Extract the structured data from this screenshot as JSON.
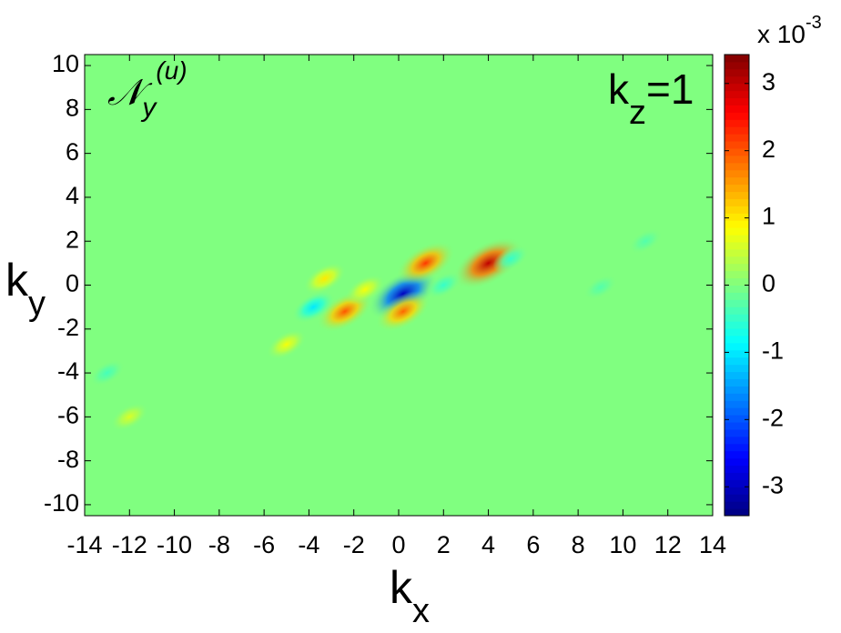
{
  "chart_data": {
    "type": "contour",
    "title": {
      "base": "𝒩",
      "sub": "y",
      "sup": "(u)"
    },
    "annotation": {
      "base": "k",
      "sub": "z",
      "rest": "=1"
    },
    "xlabel": {
      "base": "k",
      "sub": "x"
    },
    "ylabel": {
      "base": "k",
      "sub": "y"
    },
    "colorbar_label": {
      "base": "x 10",
      "sup": "-3"
    },
    "x": [
      0.2,
      4,
      1.2,
      -2.4,
      0.2,
      -3.8,
      -3.3,
      -5,
      -1.5,
      2,
      5,
      11,
      -13,
      -12,
      9
    ],
    "y": [
      -0.4,
      1,
      1,
      -1.2,
      -1.2,
      -1,
      0.3,
      -2.7,
      -0.2,
      0,
      1.2,
      2,
      -4,
      -6,
      -0.1
    ],
    "z": [
      -3.0,
      3.0,
      2.2,
      2.0,
      1.9,
      -1.0,
      1.0,
      0.8,
      0.8,
      -0.5,
      -0.5,
      -0.3,
      -0.4,
      0.6,
      -0.3
    ],
    "colormap": "jet",
    "xlim": [
      -14,
      14
    ],
    "ylim": [
      -10.5,
      10.5
    ],
    "clim": [
      -3.43,
      3.43
    ],
    "xticks": [
      -14,
      -12,
      -10,
      -8,
      -6,
      -4,
      -2,
      0,
      2,
      4,
      6,
      8,
      10,
      12,
      14
    ],
    "yticks": [
      -10,
      -8,
      -6,
      -4,
      -2,
      0,
      2,
      4,
      6,
      8,
      10
    ],
    "cticks": [
      -3,
      -2,
      -1,
      0,
      1,
      2,
      3
    ]
  }
}
